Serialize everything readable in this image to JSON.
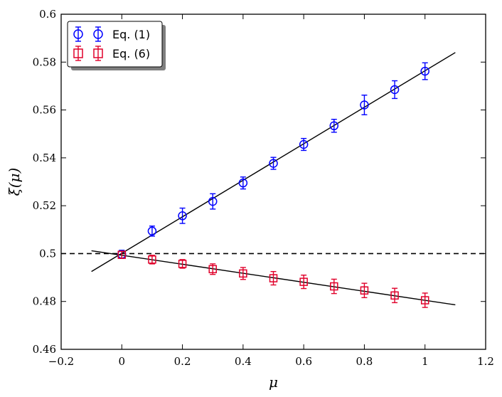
{
  "chart_data": {
    "type": "scatter",
    "xlabel": "μ",
    "ylabel": "ξ(μ)",
    "xlim": [
      -0.2,
      1.2
    ],
    "ylim": [
      0.46,
      0.6
    ],
    "xticks": [
      -0.2,
      0,
      0.2,
      0.4,
      0.6,
      0.8,
      1,
      1.2
    ],
    "xtick_labels": [
      "−0.2",
      "0",
      "0.2",
      "0.4",
      "0.6",
      "0.8",
      "1",
      "1.2"
    ],
    "yticks": [
      0.46,
      0.48,
      0.5,
      0.52,
      0.54,
      0.56,
      0.58,
      0.6
    ],
    "ytick_labels": [
      "0.46",
      "0.48",
      "0.5",
      "0.52",
      "0.54",
      "0.56",
      "0.58",
      "0.6"
    ],
    "grid": false,
    "legend_position": "top-left",
    "series": [
      {
        "name": "Eq. (1)",
        "marker": "circle",
        "color": "#0000ff",
        "x": [
          0,
          0.1,
          0.2,
          0.3,
          0.4,
          0.5,
          0.6,
          0.7,
          0.8,
          0.9,
          1.0
        ],
        "y": [
          0.4997,
          0.5094,
          0.5158,
          0.5218,
          0.5295,
          0.5377,
          0.5456,
          0.5534,
          0.5621,
          0.5685,
          0.5762
        ],
        "yerr": [
          0.0017,
          0.0021,
          0.0032,
          0.0032,
          0.0025,
          0.0025,
          0.0025,
          0.0027,
          0.0041,
          0.0037,
          0.0035
        ],
        "fit_line": {
          "x": [
            -0.1,
            1.1
          ],
          "y": [
            0.4925,
            0.584
          ]
        }
      },
      {
        "name": "Eq. (6)",
        "marker": "square",
        "color": "#e0002a",
        "x": [
          0,
          0.1,
          0.2,
          0.3,
          0.4,
          0.5,
          0.6,
          0.7,
          0.8,
          0.9,
          1.0
        ],
        "y": [
          0.4995,
          0.4975,
          0.4957,
          0.4935,
          0.4917,
          0.4897,
          0.4882,
          0.4863,
          0.4846,
          0.4825,
          0.4805
        ],
        "yerr": [
          0.0015,
          0.0018,
          0.0018,
          0.0022,
          0.0025,
          0.0028,
          0.0028,
          0.003,
          0.003,
          0.003,
          0.003
        ],
        "fit_line": {
          "x": [
            -0.1,
            1.1
          ],
          "y": [
            0.5012,
            0.4786
          ]
        }
      }
    ],
    "reference_line": {
      "y": 0.5,
      "style": "dashed",
      "color": "#000000"
    }
  }
}
